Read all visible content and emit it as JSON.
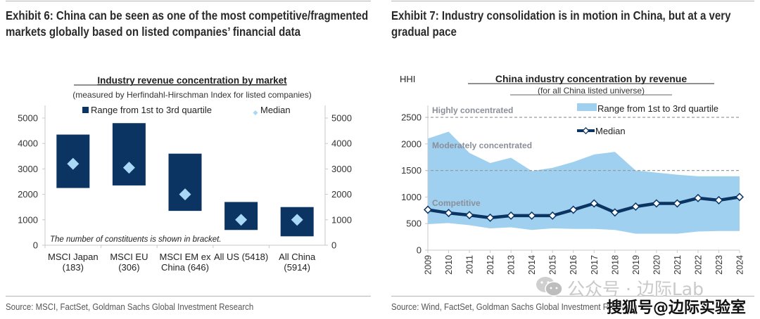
{
  "exhibit6": {
    "title": "Exhibit 6: China can be seen as one of the most competitive/fragmented markets globally based on listed companies’ financial data",
    "source": "Source: MSCI, FactSet, Goldman Sachs Global Investment Research"
  },
  "exhibit7": {
    "title": "Exhibit 7: Industry consolidation is in motion in China, but at a very gradual pace",
    "source": "Source: Wind, FactSet, Goldman Sachs Global Investment Research"
  },
  "watermark": {
    "wechat_text": "公众号 · 边际Lab",
    "sohu_text": "搜狐号@边际实验室"
  },
  "colors": {
    "dark_navy": "#0b3463",
    "light_blue": "#9fd0ef",
    "median_diamond": "#a8d8f5",
    "ref_line": "#9a9a9a",
    "zone_label": "#8a8f99"
  },
  "chart_data": [
    {
      "type": "bar",
      "subtype": "floating-range-with-median",
      "title": "Industry revenue concentration by market",
      "subtitle": "(measured by Herfindahl-Hirschman Index for listed companies)",
      "categories": [
        "MSCI Japan (183)",
        "MSCI EU (306)",
        "MSCI EM ex China (646)",
        "All US (5418)",
        "All China (5914)"
      ],
      "category_lines": [
        [
          "MSCI Japan",
          "(183)"
        ],
        [
          "MSCI EU",
          "(306)"
        ],
        [
          "MSCI EM ex",
          "China (646)"
        ],
        [
          "All US (5418)"
        ],
        [
          "All China",
          "(5914)"
        ]
      ],
      "series": [
        {
          "name": "Range from 1st to 3rd quartile",
          "low": [
            2250,
            2350,
            1350,
            600,
            350
          ],
          "high": [
            4350,
            4800,
            3600,
            1700,
            1500
          ]
        },
        {
          "name": "Median",
          "values": [
            3200,
            3050,
            2000,
            1000,
            1000
          ]
        }
      ],
      "yticks": [
        0,
        1000,
        2000,
        3000,
        4000,
        5000
      ],
      "ylim": [
        0,
        5000
      ],
      "secondary_y": true,
      "legend": "top",
      "note": "The number of constituents is shown in bracket.",
      "xlabel": "",
      "ylabel": ""
    },
    {
      "type": "area",
      "subtype": "range-band-with-median-line",
      "title": "China industry concentration by revenue",
      "subtitle": "(for all China listed universe)",
      "ylabel": "HHI",
      "x": [
        "2009",
        "2010",
        "2011",
        "2012",
        "2013",
        "2014",
        "2015",
        "2016",
        "2017",
        "2018",
        "2019",
        "2020",
        "2021",
        "2022",
        "2023",
        "2024"
      ],
      "series": [
        {
          "name": "Range from 1st to 3rd quartile",
          "low": [
            490,
            510,
            470,
            410,
            430,
            380,
            410,
            400,
            400,
            380,
            310,
            310,
            310,
            350,
            360,
            360
          ],
          "high": [
            2100,
            2230,
            1830,
            1640,
            1740,
            1490,
            1550,
            1660,
            1800,
            1850,
            1500,
            1460,
            1420,
            1390,
            1390,
            1390
          ]
        },
        {
          "name": "Median",
          "values": [
            760,
            700,
            660,
            610,
            650,
            650,
            650,
            760,
            880,
            710,
            820,
            880,
            880,
            980,
            940,
            1000
          ]
        }
      ],
      "reference_lines": [
        {
          "value": 2500,
          "label": "Highly concentrated"
        },
        {
          "value": 1500,
          "label": "Moderately concentrated"
        }
      ],
      "zone_labels": [
        "Highly concentrated",
        "Moderately concentrated",
        "Competitive"
      ],
      "yticks": [
        0,
        500,
        1000,
        1500,
        2000,
        2500
      ],
      "ylim": [
        0,
        2700
      ],
      "legend": "top-right",
      "grid": false
    }
  ]
}
